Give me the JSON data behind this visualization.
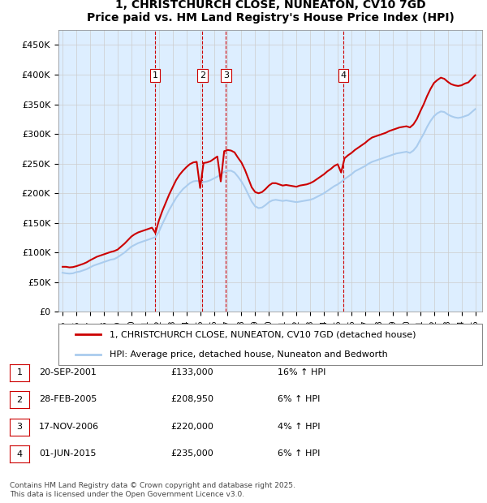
{
  "title": "1, CHRISTCHURCH CLOSE, NUNEATON, CV10 7GD",
  "subtitle": "Price paid vs. HM Land Registry's House Price Index (HPI)",
  "legend_line1": "1, CHRISTCHURCH CLOSE, NUNEATON, CV10 7GD (detached house)",
  "legend_line2": "HPI: Average price, detached house, Nuneaton and Bedworth",
  "footer": "Contains HM Land Registry data © Crown copyright and database right 2025.\nThis data is licensed under the Open Government Licence v3.0.",
  "transactions": [
    {
      "num": 1,
      "date": "20-SEP-2001",
      "price": 133000,
      "hpi_pct": "16% ↑ HPI"
    },
    {
      "num": 2,
      "date": "28-FEB-2005",
      "price": 208950,
      "hpi_pct": "6% ↑ HPI"
    },
    {
      "num": 3,
      "date": "17-NOV-2006",
      "price": 220000,
      "hpi_pct": "4% ↑ HPI"
    },
    {
      "num": 4,
      "date": "01-JUN-2015",
      "price": 235000,
      "hpi_pct": "6% ↑ HPI"
    }
  ],
  "sale_years": [
    2001.72,
    2005.16,
    2006.88,
    2015.41
  ],
  "ylim": [
    0,
    475000
  ],
  "yticks": [
    0,
    50000,
    100000,
    150000,
    200000,
    250000,
    300000,
    350000,
    400000,
    450000
  ],
  "red_color": "#cc0000",
  "blue_color": "#aaccee",
  "dashed_color": "#cc0000",
  "bg_color": "#ddeeff",
  "plot_bg": "#ffffff",
  "hpi_data": {
    "years": [
      1995.0,
      1995.25,
      1995.5,
      1995.75,
      1996.0,
      1996.25,
      1996.5,
      1996.75,
      1997.0,
      1997.25,
      1997.5,
      1997.75,
      1998.0,
      1998.25,
      1998.5,
      1998.75,
      1999.0,
      1999.25,
      1999.5,
      1999.75,
      2000.0,
      2000.25,
      2000.5,
      2000.75,
      2001.0,
      2001.25,
      2001.5,
      2001.75,
      2002.0,
      2002.25,
      2002.5,
      2002.75,
      2003.0,
      2003.25,
      2003.5,
      2003.75,
      2004.0,
      2004.25,
      2004.5,
      2004.75,
      2005.0,
      2005.25,
      2005.5,
      2005.75,
      2006.0,
      2006.25,
      2006.5,
      2006.75,
      2007.0,
      2007.25,
      2007.5,
      2007.75,
      2008.0,
      2008.25,
      2008.5,
      2008.75,
      2009.0,
      2009.25,
      2009.5,
      2009.75,
      2010.0,
      2010.25,
      2010.5,
      2010.75,
      2011.0,
      2011.25,
      2011.5,
      2011.75,
      2012.0,
      2012.25,
      2012.5,
      2012.75,
      2013.0,
      2013.25,
      2013.5,
      2013.75,
      2014.0,
      2014.25,
      2014.5,
      2014.75,
      2015.0,
      2015.25,
      2015.5,
      2015.75,
      2016.0,
      2016.25,
      2016.5,
      2016.75,
      2017.0,
      2017.25,
      2017.5,
      2017.75,
      2018.0,
      2018.25,
      2018.5,
      2018.75,
      2019.0,
      2019.25,
      2019.5,
      2019.75,
      2020.0,
      2020.25,
      2020.5,
      2020.75,
      2021.0,
      2021.25,
      2021.5,
      2021.75,
      2022.0,
      2022.25,
      2022.5,
      2022.75,
      2023.0,
      2023.25,
      2023.5,
      2023.75,
      2024.0,
      2024.25,
      2024.5,
      2024.75,
      2025.0
    ],
    "values": [
      66000,
      65000,
      64500,
      65000,
      67000,
      68000,
      70000,
      72000,
      75000,
      78000,
      80000,
      82000,
      84000,
      86000,
      88000,
      89000,
      92000,
      96000,
      100000,
      105000,
      110000,
      113000,
      116000,
      118000,
      120000,
      122000,
      124000,
      126000,
      135000,
      148000,
      160000,
      172000,
      182000,
      192000,
      200000,
      207000,
      212000,
      217000,
      220000,
      221000,
      220000,
      219000,
      220000,
      222000,
      225000,
      228000,
      232000,
      236000,
      238000,
      238000,
      235000,
      228000,
      220000,
      210000,
      198000,
      186000,
      178000,
      175000,
      176000,
      180000,
      185000,
      188000,
      189000,
      188000,
      187000,
      188000,
      187000,
      186000,
      185000,
      186000,
      187000,
      188000,
      189000,
      191000,
      194000,
      197000,
      200000,
      204000,
      208000,
      212000,
      215000,
      219000,
      224000,
      228000,
      232000,
      237000,
      240000,
      243000,
      246000,
      250000,
      253000,
      255000,
      257000,
      259000,
      261000,
      263000,
      265000,
      267000,
      268000,
      269000,
      270000,
      268000,
      272000,
      279000,
      290000,
      300000,
      312000,
      322000,
      330000,
      335000,
      338000,
      337000,
      333000,
      330000,
      328000,
      327000,
      328000,
      330000,
      332000,
      337000,
      342000
    ]
  },
  "price_data": {
    "years": [
      1995.0,
      1995.25,
      1995.5,
      1995.75,
      1996.0,
      1996.25,
      1996.5,
      1996.75,
      1997.0,
      1997.25,
      1997.5,
      1997.75,
      1998.0,
      1998.25,
      1998.5,
      1998.75,
      1999.0,
      1999.25,
      1999.5,
      1999.75,
      2000.0,
      2000.25,
      2000.5,
      2000.75,
      2001.0,
      2001.25,
      2001.5,
      2001.75,
      2002.0,
      2002.25,
      2002.5,
      2002.75,
      2003.0,
      2003.25,
      2003.5,
      2003.75,
      2004.0,
      2004.25,
      2004.5,
      2004.75,
      2005.0,
      2005.25,
      2005.5,
      2005.75,
      2006.0,
      2006.25,
      2006.5,
      2006.75,
      2007.0,
      2007.25,
      2007.5,
      2007.75,
      2008.0,
      2008.25,
      2008.5,
      2008.75,
      2009.0,
      2009.25,
      2009.5,
      2009.75,
      2010.0,
      2010.25,
      2010.5,
      2010.75,
      2011.0,
      2011.25,
      2011.5,
      2011.75,
      2012.0,
      2012.25,
      2012.5,
      2012.75,
      2013.0,
      2013.25,
      2013.5,
      2013.75,
      2014.0,
      2014.25,
      2014.5,
      2014.75,
      2015.0,
      2015.25,
      2015.5,
      2015.75,
      2016.0,
      2016.25,
      2016.5,
      2016.75,
      2017.0,
      2017.25,
      2017.5,
      2017.75,
      2018.0,
      2018.25,
      2018.5,
      2018.75,
      2019.0,
      2019.25,
      2019.5,
      2019.75,
      2020.0,
      2020.25,
      2020.5,
      2020.75,
      2021.0,
      2021.25,
      2021.5,
      2021.75,
      2022.0,
      2022.25,
      2022.5,
      2022.75,
      2023.0,
      2023.25,
      2023.5,
      2023.75,
      2024.0,
      2024.25,
      2024.5,
      2024.75,
      2025.0
    ],
    "values": [
      76000,
      76000,
      75000,
      75500,
      77000,
      79000,
      81000,
      83500,
      87000,
      90000,
      93000,
      95000,
      97000,
      99000,
      101000,
      102500,
      105000,
      110000,
      115000,
      121000,
      127000,
      131000,
      134000,
      136000,
      138000,
      140000,
      142000,
      133000,
      154000,
      170000,
      184000,
      198000,
      210000,
      222000,
      231000,
      238000,
      244000,
      249000,
      252000,
      253000,
      208950,
      251000,
      252000,
      254000,
      258000,
      262000,
      220000,
      271000,
      273000,
      272000,
      269000,
      260000,
      252000,
      240000,
      225000,
      210000,
      202000,
      200000,
      202000,
      207000,
      213000,
      217000,
      217000,
      215000,
      213000,
      214000,
      213000,
      212000,
      211000,
      213000,
      214000,
      215000,
      217000,
      220000,
      224000,
      228000,
      232000,
      237000,
      241000,
      246000,
      249000,
      235000,
      259000,
      264000,
      268000,
      273000,
      277000,
      281000,
      285000,
      290000,
      294000,
      296000,
      298000,
      300000,
      302000,
      305000,
      307000,
      309000,
      311000,
      312000,
      313000,
      311000,
      316000,
      325000,
      338000,
      350000,
      364000,
      376000,
      386000,
      391000,
      395000,
      393000,
      388000,
      384000,
      382000,
      381000,
      382000,
      385000,
      387000,
      393000,
      399000
    ]
  }
}
